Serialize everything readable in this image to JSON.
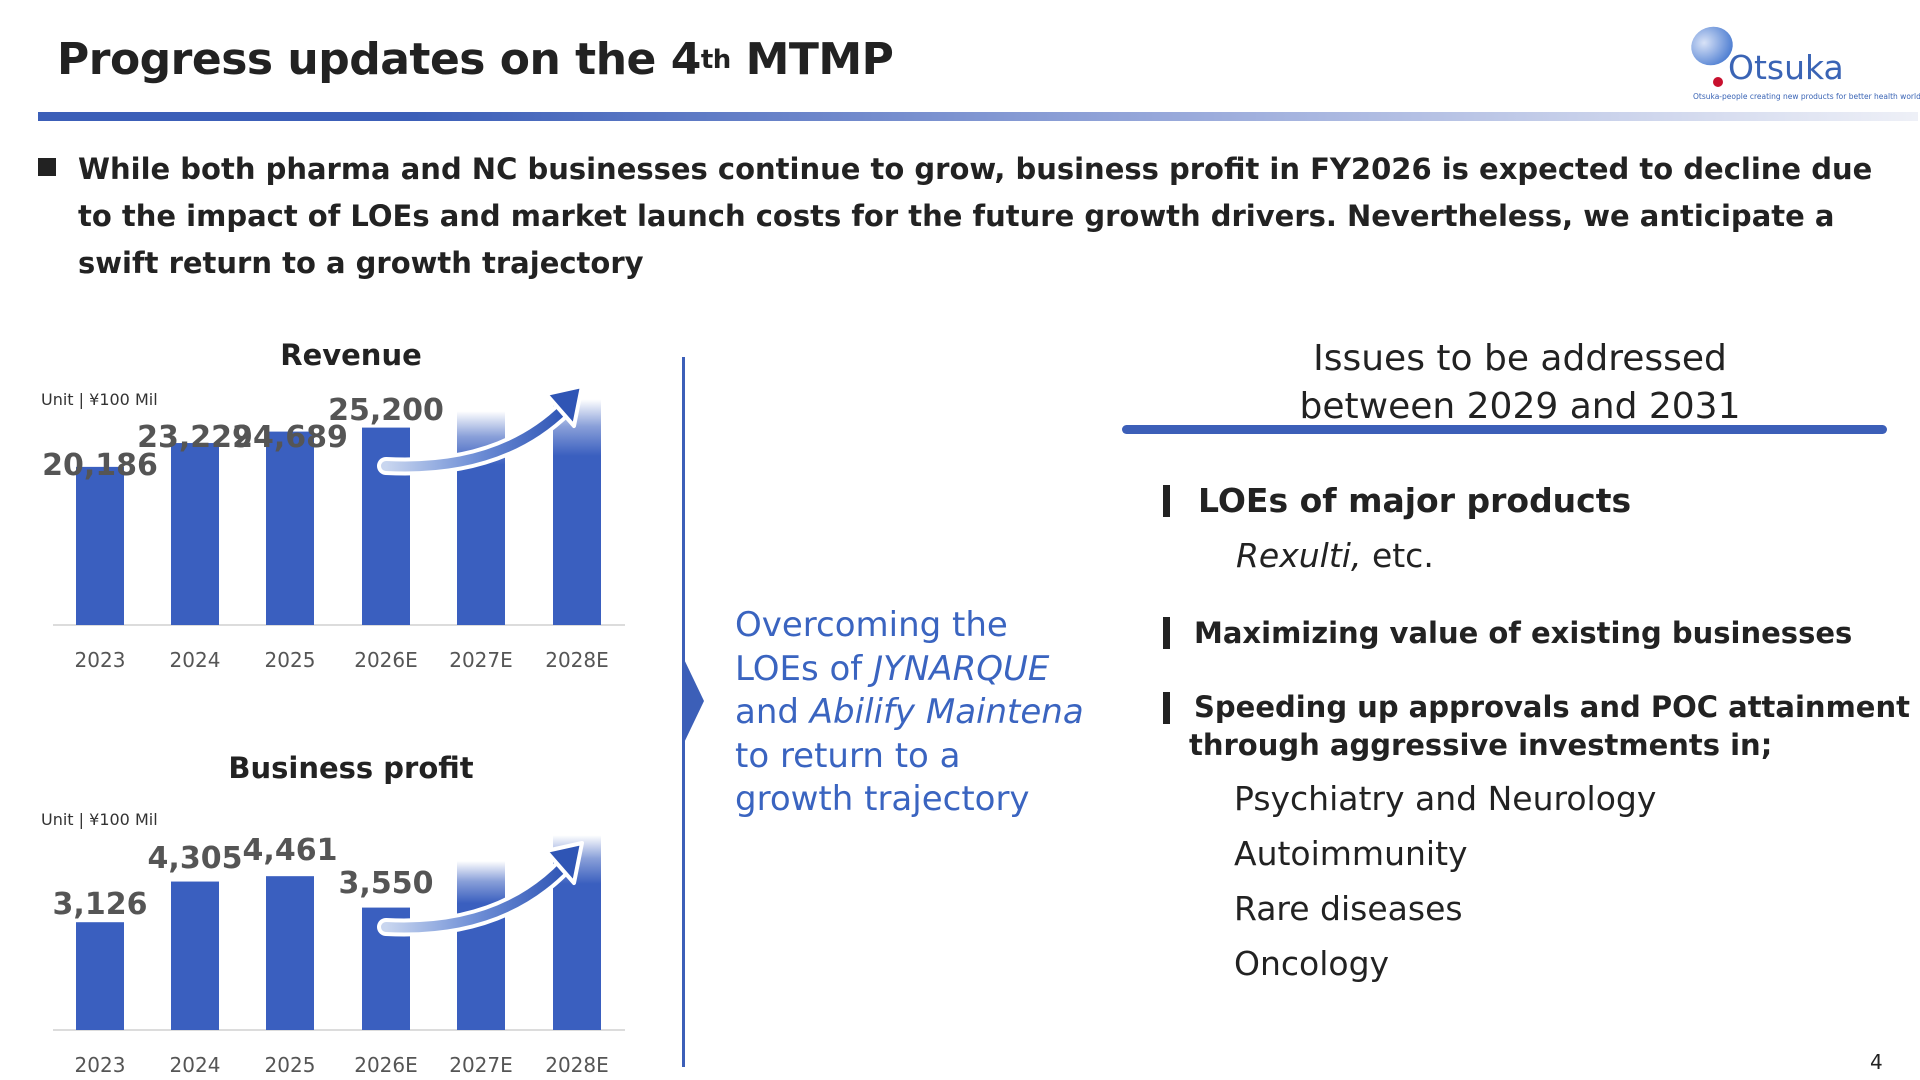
{
  "title": {
    "main": "Progress updates on the 4",
    "sup": "th",
    "tail": " MTMP"
  },
  "logo": {
    "word": "Otsuka",
    "tagline": "Otsuka-people creating new products for better health worldwide"
  },
  "intro": "While both pharma and NC businesses continue to grow, business profit in FY2026 is expected to decline due to the impact of LOEs and market launch costs for the future growth drivers. Nevertheless, we anticipate a swift return to a growth trajectory",
  "colors": {
    "accent": "#3c5fb8",
    "bar": "#3a5fbf",
    "text": "#222222",
    "label": "#555555",
    "overcome": "#3a64c0"
  },
  "chart_data": [
    {
      "type": "bar",
      "title": "Revenue",
      "unit": "Unit | ¥100 Mil",
      "categories": [
        "2023",
        "2024",
        "2025",
        "2026E",
        "2027E",
        "2028E"
      ],
      "values": [
        20186,
        23229,
        24689,
        25200,
        null,
        null
      ],
      "value_labels": [
        "20,186",
        "23,229",
        "24,689",
        "25,200",
        "",
        ""
      ],
      "projected": [
        false,
        false,
        false,
        false,
        true,
        true
      ],
      "growth_arrow": true,
      "ylim": [
        0,
        30000
      ]
    },
    {
      "type": "bar",
      "title": "Business profit",
      "unit": "Unit | ¥100 Mil",
      "categories": [
        "2023",
        "2024",
        "2025",
        "2026E",
        "2027E",
        "2028E"
      ],
      "values": [
        3126,
        4305,
        4461,
        3550,
        null,
        null
      ],
      "value_labels": [
        "3,126",
        "4,305",
        "4,461",
        "3,550",
        "",
        ""
      ],
      "projected": [
        false,
        false,
        false,
        false,
        true,
        true
      ],
      "growth_arrow": true,
      "ylim": [
        0,
        5800
      ]
    }
  ],
  "middle": {
    "l1": "Overcoming the",
    "l2a": "LOEs of ",
    "l2b": "JYNARQUE",
    "l3a": "and ",
    "l3b": "Abilify Maintena",
    "l4": "to return to a",
    "l5": "growth trajectory"
  },
  "issues": {
    "heading_line1": "Issues to be addressed",
    "heading_line2": "between 2029 and 2031",
    "item1": {
      "label": "LOEs of major products",
      "sub_italic": "Rexulti,",
      "sub_rest": " etc."
    },
    "item2": {
      "label": "Maximizing value of existing businesses"
    },
    "item3": {
      "line1": "Speeding up approvals and POC attainment",
      "line2": "through aggressive investments in;",
      "areas": [
        "Psychiatry and Neurology",
        "Autoimmunity",
        "Rare diseases",
        "Oncology"
      ]
    }
  },
  "page_number": "4"
}
